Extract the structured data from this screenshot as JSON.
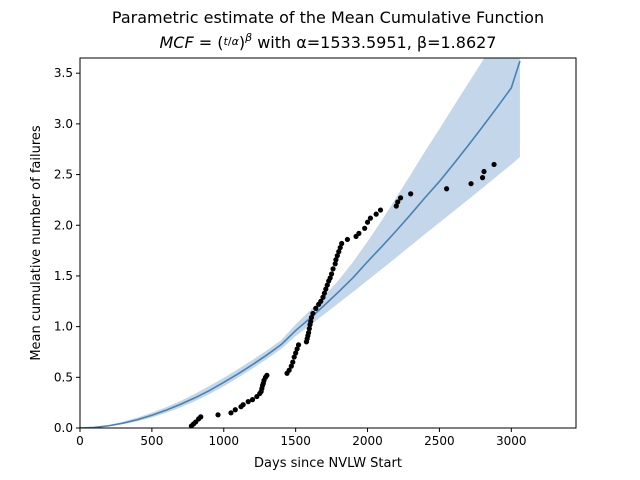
{
  "chart_data": {
    "type": "scatter",
    "title": "Parametric estimate of the Mean Cumulative Function",
    "subtitle": "MCF = (t/α)^β with α=1533.5951, β=1.8627",
    "subtitle_parts": {
      "lhs": "MCF",
      "eq": " = (",
      "t": "t",
      "alpha_sym": "α",
      "close": ")",
      "beta_sym": "β",
      "rest": " with α=1533.5951, β=1.8627"
    },
    "xlabel": "Days since NVLW Start",
    "ylabel": "Mean cumulative number of failures",
    "xlim": [
      0,
      3450
    ],
    "ylim": [
      0,
      3.65
    ],
    "x_ticks": [
      0,
      500,
      1000,
      1500,
      2000,
      2500,
      3000
    ],
    "y_ticks": [
      0.0,
      0.5,
      1.0,
      1.5,
      2.0,
      2.5,
      3.0,
      3.5
    ],
    "x_tick_labels": [
      "0",
      "500",
      "1000",
      "1500",
      "2000",
      "2500",
      "3000"
    ],
    "y_tick_labels": [
      "0.0",
      "0.5",
      "1.0",
      "1.5",
      "2.0",
      "2.5",
      "3.0",
      "3.5"
    ],
    "grid": false,
    "fit_params": {
      "alpha": 1533.5951,
      "beta": 1.8627
    },
    "colors": {
      "fit_line": "#4682b4",
      "band": "#b9cfe6",
      "points": "#000000"
    },
    "series": [
      {
        "type": "scatter",
        "x": [
          775,
          790,
          805,
          825,
          840,
          960,
          1050,
          1080,
          1120,
          1135,
          1170,
          1200,
          1230,
          1250,
          1260,
          1265,
          1270,
          1275,
          1280,
          1290,
          1300,
          1440,
          1455,
          1470,
          1480,
          1490,
          1500,
          1510,
          1520,
          1575,
          1580,
          1585,
          1590,
          1595,
          1600,
          1605,
          1610,
          1620,
          1640,
          1660,
          1675,
          1690,
          1700,
          1710,
          1720,
          1730,
          1740,
          1750,
          1760,
          1775,
          1780,
          1790,
          1800,
          1810,
          1820,
          1860,
          1920,
          1940,
          1980,
          2000,
          2020,
          2060,
          2090,
          2200,
          2210,
          2230,
          2300,
          2550,
          2720,
          2800,
          2810,
          2880
        ],
        "y": [
          0.02,
          0.04,
          0.06,
          0.09,
          0.11,
          0.13,
          0.15,
          0.18,
          0.21,
          0.23,
          0.26,
          0.28,
          0.31,
          0.34,
          0.36,
          0.39,
          0.42,
          0.44,
          0.47,
          0.5,
          0.52,
          0.54,
          0.57,
          0.61,
          0.65,
          0.7,
          0.74,
          0.78,
          0.82,
          0.85,
          0.88,
          0.91,
          0.94,
          0.98,
          1.02,
          1.05,
          1.09,
          1.13,
          1.18,
          1.22,
          1.25,
          1.29,
          1.33,
          1.37,
          1.41,
          1.45,
          1.48,
          1.52,
          1.57,
          1.62,
          1.66,
          1.7,
          1.74,
          1.78,
          1.82,
          1.86,
          1.89,
          1.92,
          1.97,
          2.03,
          2.07,
          2.11,
          2.15,
          2.19,
          2.23,
          2.27,
          2.31,
          2.36,
          2.41,
          2.47,
          2.53,
          2.6
        ]
      },
      {
        "type": "line",
        "x": [
          0,
          100,
          200,
          300,
          400,
          500,
          600,
          700,
          800,
          900,
          1000,
          1100,
          1200,
          1300,
          1400,
          1500,
          1600,
          1700,
          1800,
          1900,
          2000,
          2100,
          2200,
          2300,
          2400,
          2500,
          2600,
          2700,
          2800,
          2900,
          3000,
          3060
        ],
        "y": [
          0.0,
          0.006,
          0.022,
          0.048,
          0.083,
          0.126,
          0.176,
          0.234,
          0.298,
          0.369,
          0.451,
          0.535,
          0.625,
          0.721,
          0.823,
          0.961,
          1.083,
          1.211,
          1.345,
          1.484,
          1.641,
          1.791,
          1.946,
          2.107,
          2.273,
          2.432,
          2.607,
          2.787,
          2.972,
          3.161,
          3.355,
          3.62
        ]
      },
      {
        "type": "band",
        "x": [
          0,
          100,
          200,
          300,
          400,
          500,
          600,
          700,
          800,
          900,
          1000,
          1100,
          1200,
          1300,
          1400,
          1500,
          1600,
          1700,
          1800,
          1900,
          2000,
          2100,
          2200,
          2300,
          2400,
          2500,
          2600,
          2700,
          2800,
          2900,
          3000,
          3060
        ],
        "lower": [
          0.0,
          0.004,
          0.016,
          0.037,
          0.066,
          0.104,
          0.15,
          0.204,
          0.265,
          0.334,
          0.412,
          0.497,
          0.587,
          0.681,
          0.782,
          0.906,
          1.015,
          1.123,
          1.233,
          1.343,
          1.456,
          1.568,
          1.682,
          1.798,
          1.914,
          2.026,
          2.139,
          2.253,
          2.368,
          2.484,
          2.6,
          2.673
        ],
        "upper": [
          0.0,
          0.009,
          0.03,
          0.062,
          0.103,
          0.15,
          0.206,
          0.268,
          0.338,
          0.414,
          0.496,
          0.582,
          0.672,
          0.767,
          0.867,
          1.022,
          1.16,
          1.305,
          1.46,
          1.64,
          1.84,
          2.05,
          2.275,
          2.5,
          2.73,
          2.95,
          3.175,
          3.4,
          3.62,
          3.84,
          4.06,
          4.2
        ]
      }
    ]
  }
}
